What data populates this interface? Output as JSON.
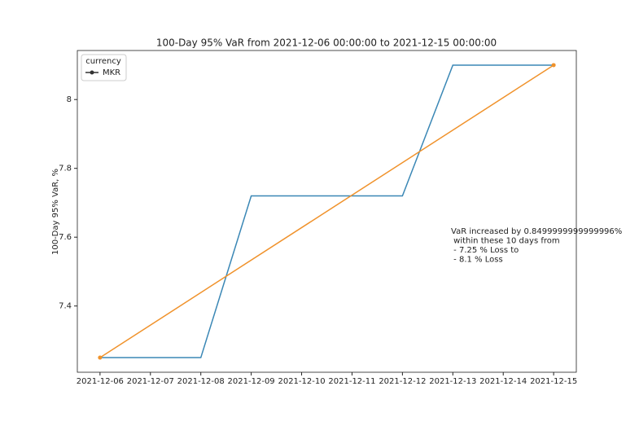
{
  "chart_data": {
    "type": "line",
    "title": "100-Day 95% VaR from 2021-12-06 00:00:00 to 2021-12-15 00:00:00",
    "y_label": "100-Day 95% VaR, %",
    "categories": [
      "2021-12-06",
      "2021-12-07",
      "2021-12-08",
      "2021-12-09",
      "2021-12-10",
      "2021-12-11",
      "2021-12-12",
      "2021-12-13",
      "2021-12-14",
      "2021-12-15"
    ],
    "series": [
      {
        "name": "MKR",
        "color": "#3a87b5",
        "values": [
          7.25,
          7.25,
          7.25,
          7.72,
          7.72,
          7.72,
          7.72,
          8.1,
          8.1,
          8.1
        ]
      }
    ],
    "trend_line": {
      "color": "#f0922b",
      "from": 7.25,
      "to": 8.1
    },
    "ylim": [
      7.2075,
      8.1425
    ],
    "yticks": [
      7.4,
      7.6,
      7.8,
      8.0
    ],
    "legend": {
      "title": "currency",
      "corner": "upper left"
    },
    "annotation": [
      "VaR increased by 0.8499999999999996%",
      " within these 10 days from",
      " - 7.25 % Loss to",
      " - 8.1 % Loss"
    ]
  }
}
